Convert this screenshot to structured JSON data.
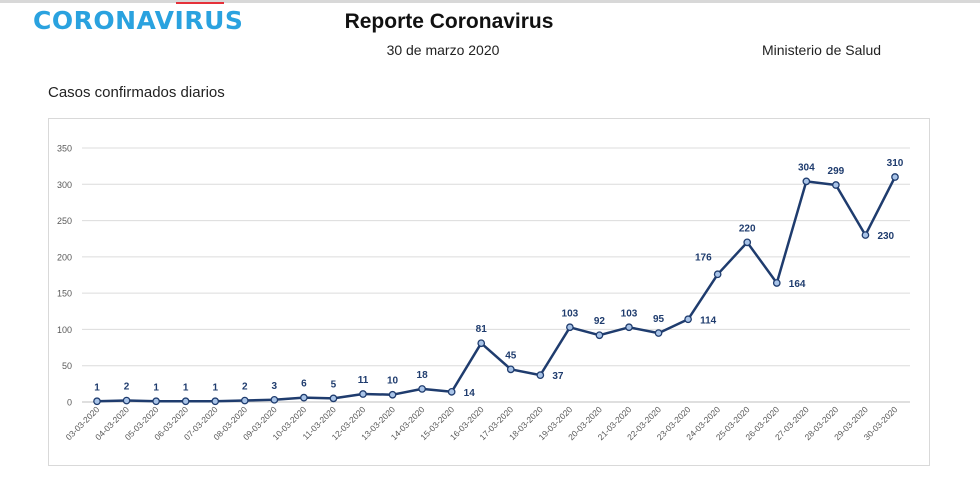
{
  "header": {
    "brand": "CORONAVIRUS",
    "title": "Reporte Coronavirus",
    "date": "30 de marzo 2020",
    "ministry": "Ministerio de Salud"
  },
  "colors": {
    "brand": "#2aa2df",
    "series": "#1f3c6e",
    "grid": "#dcdcdc"
  },
  "chart_data": {
    "type": "line",
    "title": "Casos confirmados diarios",
    "grid": true,
    "legend": "none",
    "ylim": [
      0,
      350
    ],
    "yticks": [
      0,
      50,
      100,
      150,
      200,
      250,
      300,
      350
    ],
    "categories": [
      "03-03-2020",
      "04-03-2020",
      "05-03-2020",
      "06-03-2020",
      "07-03-2020",
      "08-03-2020",
      "09-03-2020",
      "10-03-2020",
      "11-03-2020",
      "12-03-2020",
      "13-03-2020",
      "14-03-2020",
      "15-03-2020",
      "16-03-2020",
      "17-03-2020",
      "18-03-2020",
      "19-03-2020",
      "20-03-2020",
      "21-03-2020",
      "22-03-2020",
      "23-03-2020",
      "24-03-2020",
      "25-03-2020",
      "26-03-2020",
      "27-03-2020",
      "28-03-2020",
      "29-03-2020",
      "30-03-2020"
    ],
    "series": [
      {
        "values": [
          1,
          2,
          1,
          1,
          1,
          2,
          3,
          6,
          5,
          11,
          10,
          18,
          14,
          81,
          45,
          37,
          103,
          92,
          103,
          95,
          114,
          176,
          220,
          164,
          304,
          299,
          230,
          310
        ]
      }
    ]
  }
}
